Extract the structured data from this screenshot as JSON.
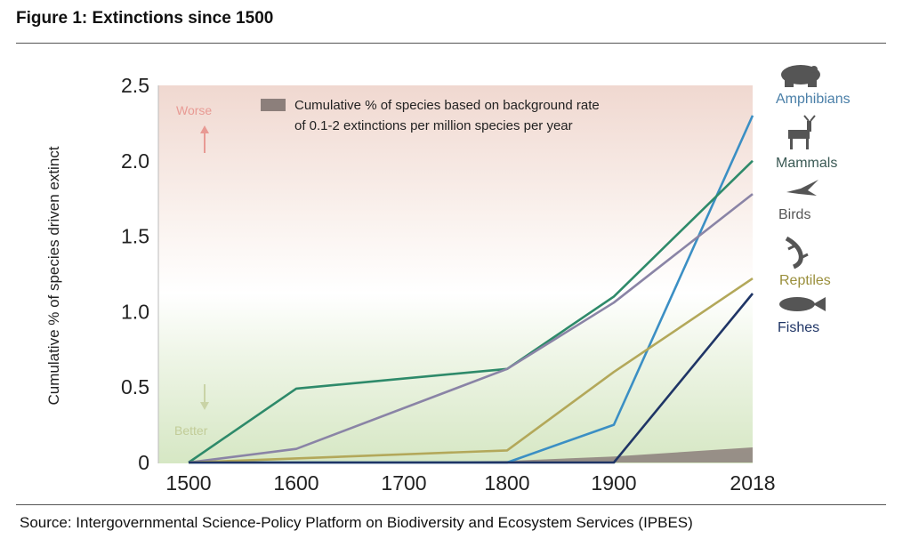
{
  "figure": {
    "title": "Figure 1: Extinctions since 1500",
    "source": "Source: Intergovernmental Science-Policy Platform on Biodiversity and Ecosystem Services (IPBES)"
  },
  "chart_data": {
    "type": "line",
    "ylabel": "Cumulative % of species driven extinct",
    "x": [
      1500,
      1600,
      1700,
      1800,
      1900,
      2018
    ],
    "x_tick_labels": [
      "1500",
      "1600",
      "1700",
      "1800",
      "1900",
      "2018"
    ],
    "y_ticks": [
      0,
      0.5,
      1.0,
      1.5,
      2.0,
      2.5
    ],
    "y_tick_labels": [
      "0",
      "0.5",
      "1.0",
      "1.5",
      "2.0",
      "2.5"
    ],
    "ylim": [
      0,
      2.5
    ],
    "xlim": [
      1500,
      2018
    ],
    "grid": false,
    "legend_text": [
      "Cumulative % of species based on background rate",
      "of 0.1-2 extinctions per million species per year"
    ],
    "band_labels": {
      "top": "Worse",
      "bottom": "Better"
    },
    "series": [
      {
        "name": "Amphibians",
        "color": "#3b8fc4",
        "icon": "frog-icon",
        "points": [
          [
            1500,
            0
          ],
          [
            1800,
            0
          ],
          [
            1900,
            0.25
          ],
          [
            2018,
            2.3
          ]
        ]
      },
      {
        "name": "Mammals",
        "color": "#2e8a6a",
        "icon": "deer-icon",
        "points": [
          [
            1500,
            0
          ],
          [
            1600,
            0.49
          ],
          [
            1800,
            0.62
          ],
          [
            1900,
            1.1
          ],
          [
            2018,
            2.0
          ]
        ]
      },
      {
        "name": "Birds",
        "color": "#8a84a6",
        "icon": "bird-icon",
        "points": [
          [
            1500,
            0
          ],
          [
            1600,
            0.09
          ],
          [
            1800,
            0.62
          ],
          [
            1900,
            1.06
          ],
          [
            2018,
            1.78
          ]
        ]
      },
      {
        "name": "Reptiles",
        "color": "#b3a85a",
        "icon": "lizard-icon",
        "points": [
          [
            1500,
            0
          ],
          [
            1800,
            0.08
          ],
          [
            1900,
            0.6
          ],
          [
            2018,
            1.22
          ]
        ]
      },
      {
        "name": "Fishes",
        "color": "#1f3566",
        "icon": "fish-icon",
        "points": [
          [
            1500,
            0
          ],
          [
            1900,
            0
          ],
          [
            2018,
            1.12
          ]
        ]
      }
    ],
    "background_rate_band": [
      [
        1500,
        0
      ],
      [
        1800,
        0.01
      ],
      [
        1900,
        0.04
      ],
      [
        2018,
        0.1
      ]
    ]
  }
}
